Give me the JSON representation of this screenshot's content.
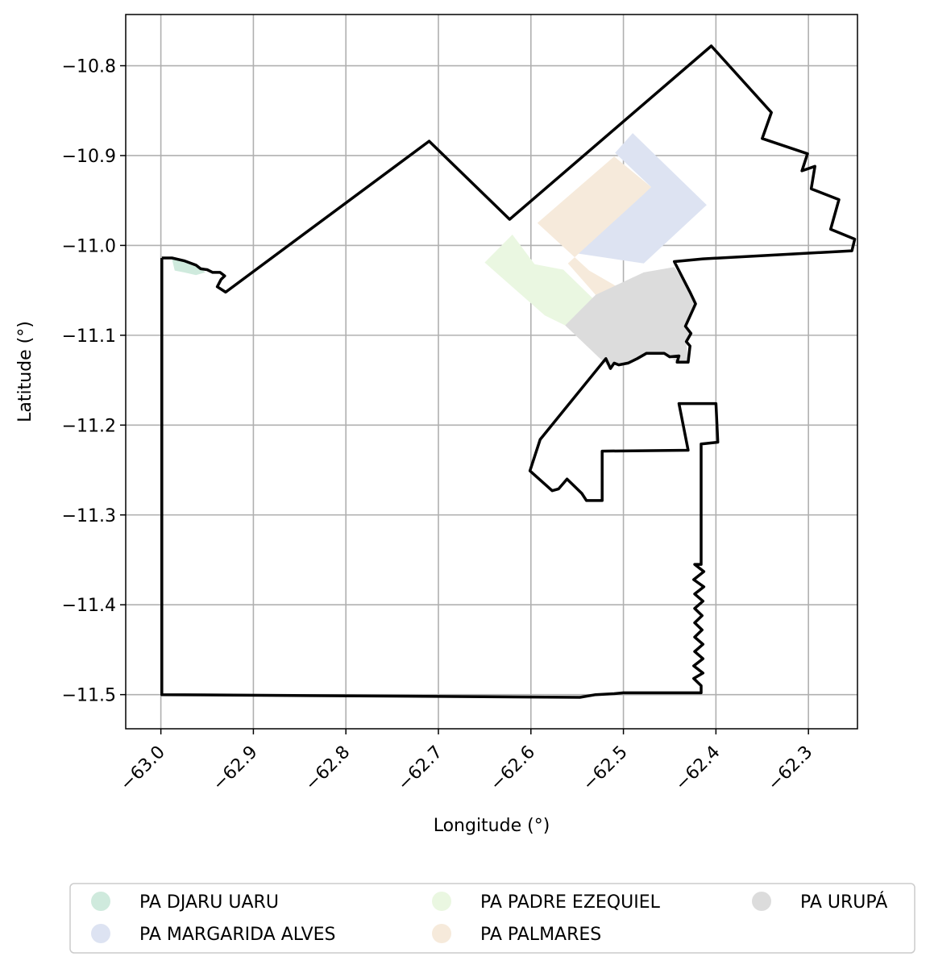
{
  "chart_data": {
    "type": "map",
    "xlabel": "Longitude (°)",
    "ylabel": "Latitude (°)",
    "xlim": [
      -63.038,
      -62.247
    ],
    "ylim": [
      -11.538,
      -10.743
    ],
    "xticks": [
      -63.0,
      -62.9,
      -62.8,
      -62.7,
      -62.6,
      -62.5,
      -62.4,
      -62.3
    ],
    "xtick_labels": [
      "−63.0",
      "−62.9",
      "−62.8",
      "−62.7",
      "−62.6",
      "−62.5",
      "−62.4",
      "−62.3"
    ],
    "yticks": [
      -10.8,
      -10.9,
      -11.0,
      -11.1,
      -11.2,
      -11.3,
      -11.4,
      -11.5
    ],
    "ytick_labels": [
      "−10.8",
      "−10.9",
      "−11.0",
      "−11.1",
      "−11.2",
      "−11.3",
      "−11.4",
      "−11.5"
    ],
    "grid": true,
    "legend_position": "bottom",
    "boundary": {
      "color": "#000000",
      "coords": [
        [
          -62.999,
          -11.014
        ],
        [
          -62.988,
          -11.014
        ],
        [
          -62.975,
          -11.017
        ],
        [
          -62.962,
          -11.022
        ],
        [
          -62.957,
          -11.026
        ],
        [
          -62.95,
          -11.027
        ],
        [
          -62.944,
          -11.03
        ],
        [
          -62.936,
          -11.03
        ],
        [
          -62.931,
          -11.034
        ],
        [
          -62.935,
          -11.038
        ],
        [
          -62.939,
          -11.046
        ],
        [
          -62.93,
          -11.052
        ],
        [
          -62.71,
          -10.884
        ],
        [
          -62.623,
          -10.971
        ],
        [
          -62.405,
          -10.778
        ],
        [
          -62.34,
          -10.852
        ],
        [
          -62.35,
          -10.881
        ],
        [
          -62.301,
          -10.898
        ],
        [
          -62.307,
          -10.917
        ],
        [
          -62.293,
          -10.912
        ],
        [
          -62.297,
          -10.937
        ],
        [
          -62.267,
          -10.949
        ],
        [
          -62.276,
          -10.982
        ],
        [
          -62.25,
          -10.993
        ],
        [
          -62.253,
          -11.006
        ],
        [
          -62.414,
          -11.015
        ],
        [
          -62.445,
          -11.018
        ],
        [
          -62.428,
          -11.052
        ],
        [
          -62.422,
          -11.065
        ],
        [
          -62.433,
          -11.09
        ],
        [
          -62.427,
          -11.098
        ],
        [
          -62.432,
          -11.107
        ],
        [
          -62.428,
          -11.112
        ],
        [
          -62.43,
          -11.13
        ],
        [
          -62.442,
          -11.13
        ],
        [
          -62.44,
          -11.123
        ],
        [
          -62.45,
          -11.124
        ],
        [
          -62.456,
          -11.12
        ],
        [
          -62.475,
          -11.12
        ],
        [
          -62.485,
          -11.126
        ],
        [
          -62.495,
          -11.131
        ],
        [
          -62.505,
          -11.133
        ],
        [
          -62.51,
          -11.131
        ],
        [
          -62.514,
          -11.137
        ],
        [
          -62.519,
          -11.126
        ],
        [
          -62.59,
          -11.216
        ],
        [
          -62.601,
          -11.251
        ],
        [
          -62.577,
          -11.273
        ],
        [
          -62.57,
          -11.271
        ],
        [
          -62.561,
          -11.26
        ],
        [
          -62.545,
          -11.276
        ],
        [
          -62.54,
          -11.284
        ],
        [
          -62.523,
          -11.284
        ],
        [
          -62.523,
          -11.229
        ],
        [
          -62.43,
          -11.228
        ],
        [
          -62.44,
          -11.176
        ],
        [
          -62.4,
          -11.176
        ],
        [
          -62.398,
          -11.219
        ],
        [
          -62.416,
          -11.221
        ],
        [
          -62.416,
          -11.355
        ],
        [
          -62.423,
          -11.355
        ],
        [
          -62.413,
          -11.363
        ],
        [
          -62.424,
          -11.372
        ],
        [
          -62.413,
          -11.38
        ],
        [
          -62.423,
          -11.388
        ],
        [
          -62.414,
          -11.396
        ],
        [
          -62.423,
          -11.404
        ],
        [
          -62.415,
          -11.412
        ],
        [
          -62.423,
          -11.42
        ],
        [
          -62.415,
          -11.428
        ],
        [
          -62.423,
          -11.436
        ],
        [
          -62.414,
          -11.444
        ],
        [
          -62.423,
          -11.452
        ],
        [
          -62.414,
          -11.46
        ],
        [
          -62.424,
          -11.468
        ],
        [
          -62.414,
          -11.476
        ],
        [
          -62.424,
          -11.482
        ],
        [
          -62.416,
          -11.49
        ],
        [
          -62.416,
          -11.498
        ],
        [
          -62.5,
          -11.498
        ],
        [
          -62.51,
          -11.499
        ],
        [
          -62.53,
          -11.5
        ],
        [
          -62.547,
          -11.503
        ],
        [
          -62.999,
          -11.5
        ],
        [
          -62.999,
          -11.014
        ]
      ]
    },
    "series": [
      {
        "name": "PA DJARU UARU",
        "color": "#cfeadd",
        "polygons": [
          [
            [
              -62.988,
              -11.015
            ],
            [
              -62.975,
              -11.018
            ],
            [
              -62.962,
              -11.022
            ],
            [
              -62.956,
              -11.026
            ],
            [
              -62.952,
              -11.03
            ],
            [
              -62.962,
              -11.033
            ],
            [
              -62.975,
              -11.03
            ],
            [
              -62.985,
              -11.028
            ]
          ]
        ]
      },
      {
        "name": "PA MARGARIDA ALVES",
        "color": "#dde3f2",
        "polygons": [
          [
            [
              -62.49,
              -10.875
            ],
            [
              -62.41,
              -10.955
            ],
            [
              -62.478,
              -11.02
            ],
            [
              -62.55,
              -11.009
            ],
            [
              -62.47,
              -10.935
            ],
            [
              -62.509,
              -10.897
            ]
          ]
        ]
      },
      {
        "name": "PA PADRE EZEQUIEL",
        "color": "#eaf7e1",
        "polygons": [
          [
            [
              -62.65,
              -11.019
            ],
            [
              -62.62,
              -10.988
            ],
            [
              -62.596,
              -11.021
            ],
            [
              -62.565,
              -11.027
            ],
            [
              -62.52,
              -11.072
            ],
            [
              -62.563,
              -11.089
            ],
            [
              -62.585,
              -11.078
            ]
          ]
        ]
      },
      {
        "name": "PA PALMARES",
        "color": "#f6eadb",
        "polygons": [
          [
            [
              -62.584,
              -10.967
            ],
            [
              -62.51,
              -10.901
            ],
            [
              -62.47,
              -10.935
            ],
            [
              -62.478,
              -10.943
            ],
            [
              -62.56,
              -11.02
            ],
            [
              -62.53,
              -11.055
            ],
            [
              -62.505,
              -11.047
            ],
            [
              -62.537,
              -11.028
            ],
            [
              -62.593,
              -10.975
            ]
          ]
        ]
      },
      {
        "name": "PA URUPÁ",
        "color": "#dcdcdc",
        "polygons": [
          [
            [
              -62.563,
              -11.089
            ],
            [
              -62.53,
              -11.055
            ],
            [
              -62.478,
              -11.03
            ],
            [
              -62.445,
              -11.024
            ],
            [
              -62.428,
              -11.052
            ],
            [
              -62.422,
              -11.065
            ],
            [
              -62.433,
              -11.09
            ],
            [
              -62.427,
              -11.098
            ],
            [
              -62.432,
              -11.107
            ],
            [
              -62.43,
              -11.13
            ],
            [
              -62.442,
              -11.13
            ],
            [
              -62.456,
              -11.12
            ],
            [
              -62.475,
              -11.12
            ],
            [
              -62.495,
              -11.131
            ],
            [
              -62.51,
              -11.131
            ],
            [
              -62.514,
              -11.137
            ]
          ]
        ]
      }
    ]
  }
}
